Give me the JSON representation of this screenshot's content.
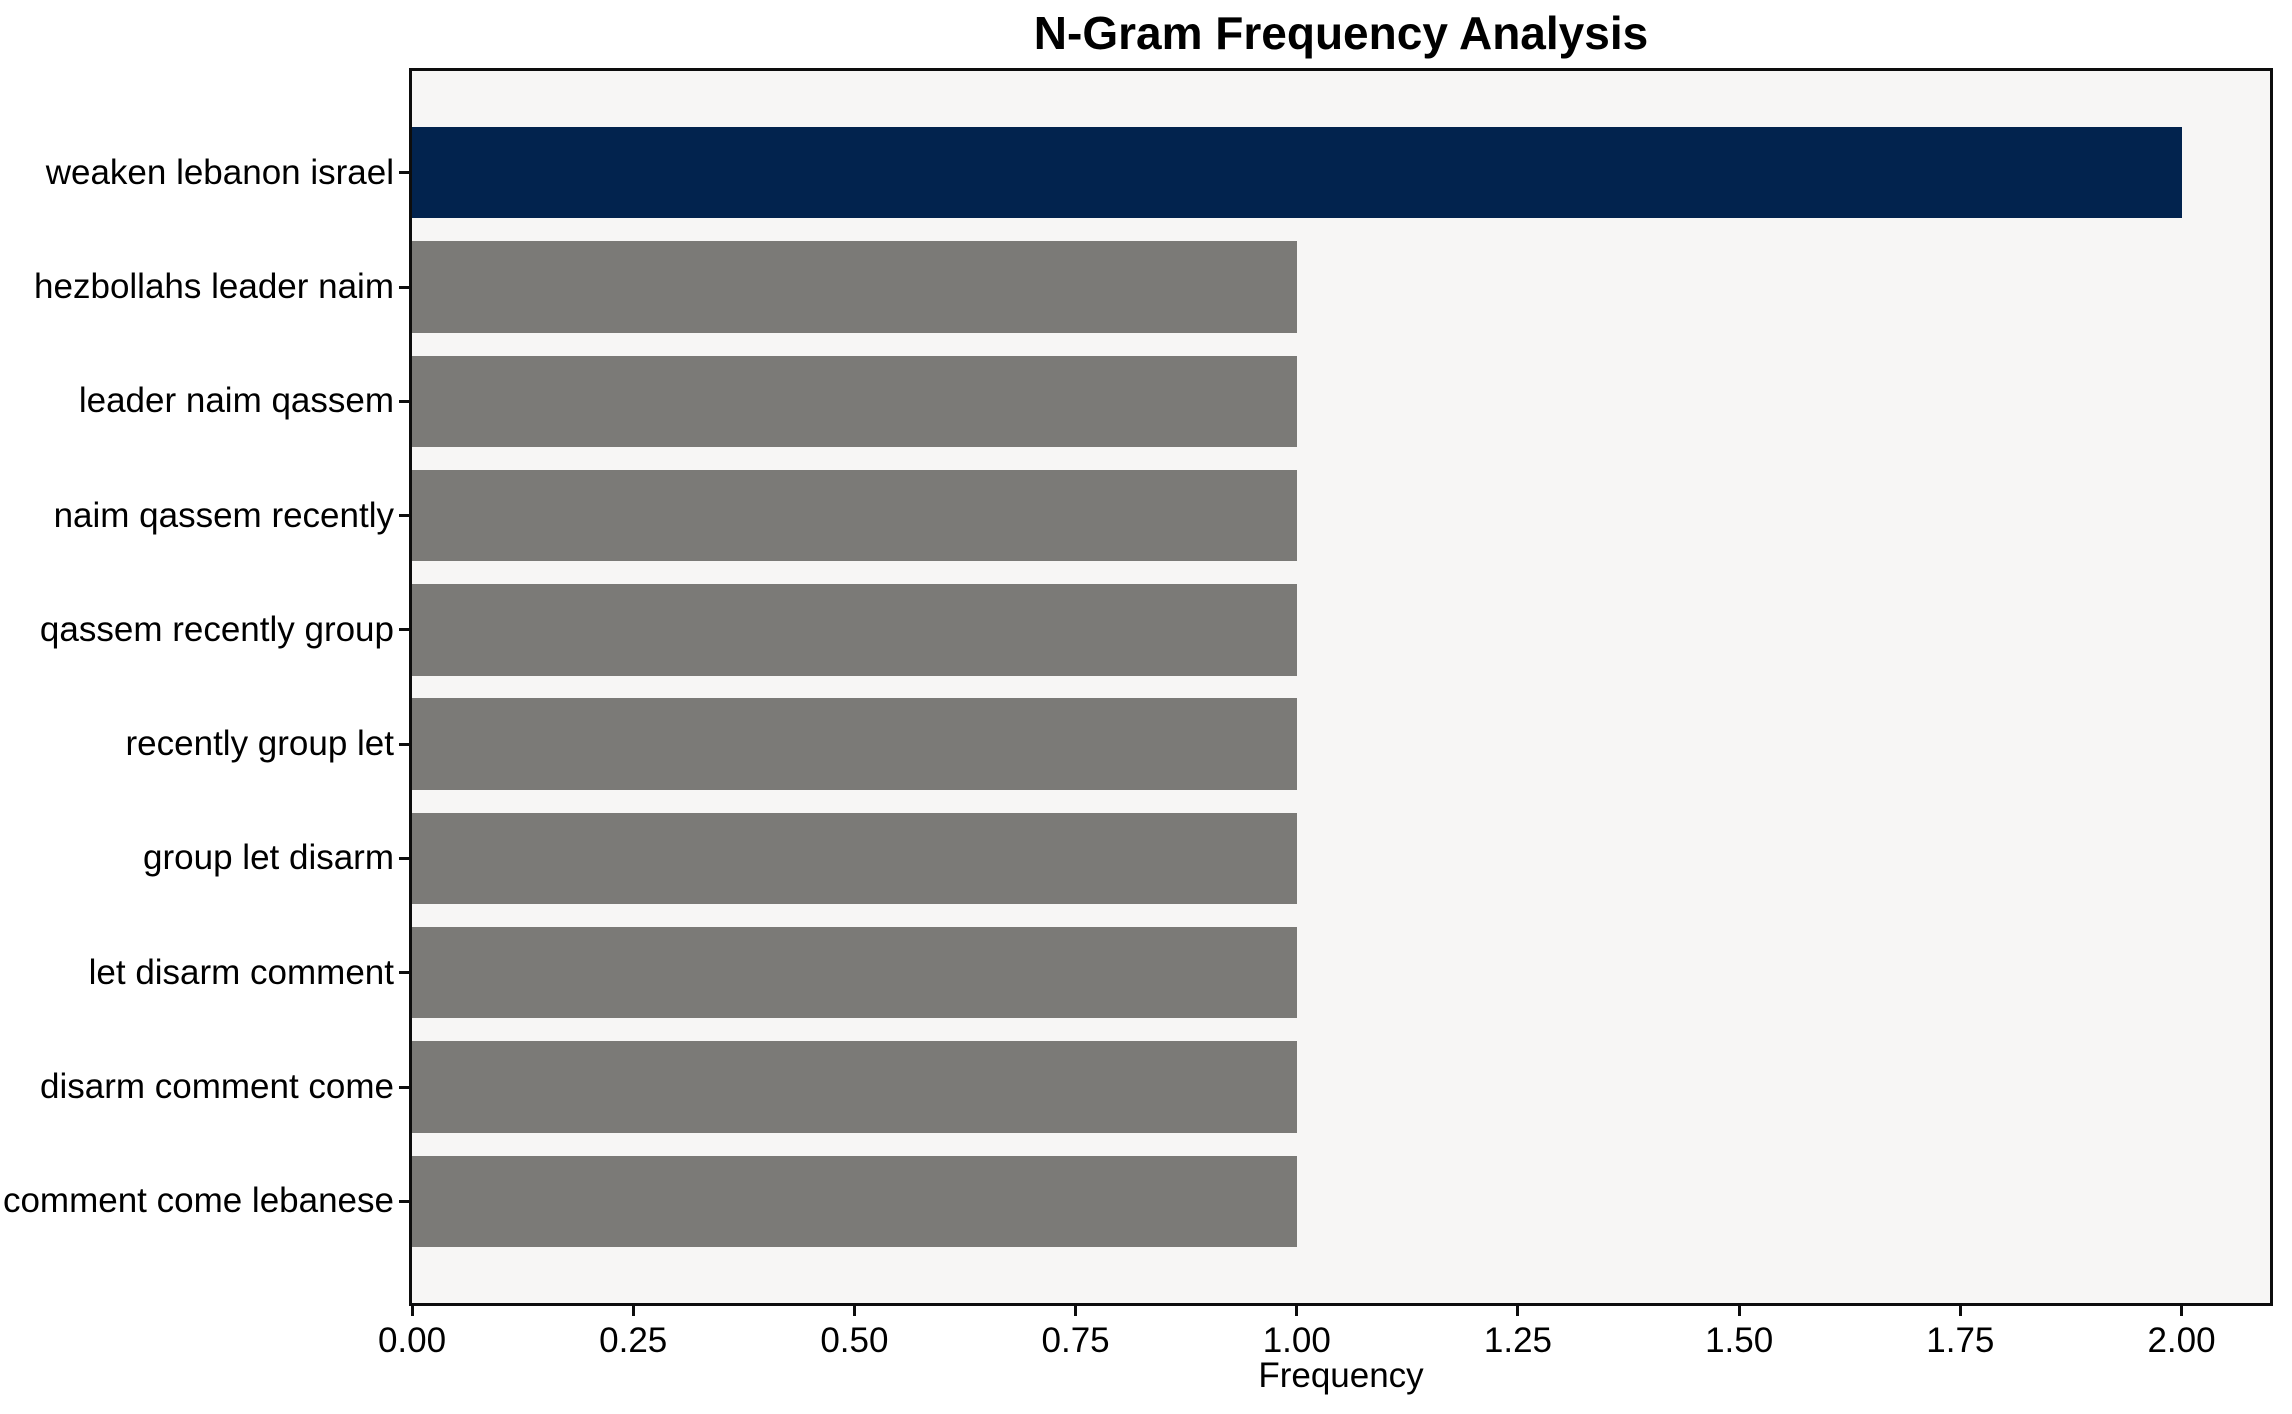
{
  "colors": {
    "figure_background": "#ffffff",
    "plot_background": "#f7f6f5",
    "spine": "#0d0d0d",
    "text": "#000000",
    "highlight_bar": "#02234e",
    "default_bar": "#7b7a77"
  },
  "chart_data": {
    "type": "bar",
    "orientation": "horizontal",
    "title": "N-Gram Frequency Analysis",
    "xlabel": "Frequency",
    "ylabel": "",
    "categories": [
      "weaken lebanon israel",
      "hezbollahs leader naim",
      "leader naim qassem",
      "naim qassem recently",
      "qassem recently group",
      "recently group let",
      "group let disarm",
      "let disarm comment",
      "disarm comment come",
      "comment come lebanese"
    ],
    "values": [
      2,
      1,
      1,
      1,
      1,
      1,
      1,
      1,
      1,
      1
    ],
    "bar_colors": [
      "#02234e",
      "#7b7a77",
      "#7b7a77",
      "#7b7a77",
      "#7b7a77",
      "#7b7a77",
      "#7b7a77",
      "#7b7a77",
      "#7b7a77",
      "#7b7a77"
    ],
    "xlim": [
      0,
      2.1
    ],
    "x_ticks": [
      {
        "value": 0.0,
        "label": "0.00"
      },
      {
        "value": 0.25,
        "label": "0.25"
      },
      {
        "value": 0.5,
        "label": "0.50"
      },
      {
        "value": 0.75,
        "label": "0.75"
      },
      {
        "value": 1.0,
        "label": "1.00"
      },
      {
        "value": 1.25,
        "label": "1.25"
      },
      {
        "value": 1.5,
        "label": "1.50"
      },
      {
        "value": 1.75,
        "label": "1.75"
      },
      {
        "value": 2.0,
        "label": "2.00"
      }
    ],
    "grid": false,
    "legend": null
  }
}
